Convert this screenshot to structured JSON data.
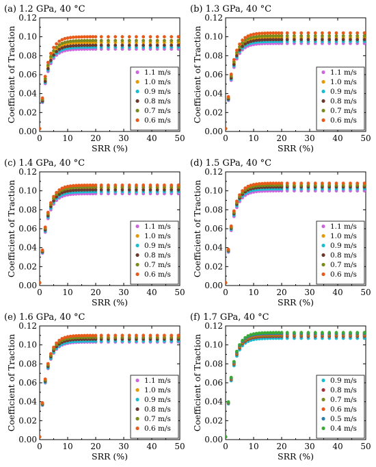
{
  "chart_data": [
    {
      "type": "scatter",
      "title": "(a) 1.2 GPa, 40 °C",
      "xlabel": "SRR (%)",
      "ylabel": "Coefficient of Traction",
      "xlim": [
        0,
        50
      ],
      "ylim": [
        0,
        0.12
      ],
      "xticks": [
        "0",
        "10",
        "20",
        "30",
        "40",
        "50"
      ],
      "yticks": [
        "0.00",
        "0.02",
        "0.04",
        "0.06",
        "0.08",
        "0.10",
        "0.12"
      ],
      "legend_position": "bottom-right",
      "series": [
        {
          "name": "1.1 m/s",
          "color": "#cc66dd",
          "plateau": 0.087,
          "curve": "saturating",
          "x_range": [
            0,
            50
          ]
        },
        {
          "name": "1.0 m/s",
          "color": "#e69a00",
          "plateau": 0.094,
          "curve": "saturating",
          "x_range": [
            0,
            50
          ]
        },
        {
          "name": "0.9 m/s",
          "color": "#1cbcd0",
          "plateau": 0.089,
          "curve": "saturating",
          "x_range": [
            0,
            50
          ]
        },
        {
          "name": "0.8 m/s",
          "color": "#6b3a2e",
          "plateau": 0.091,
          "curve": "saturating",
          "x_range": [
            0,
            50
          ]
        },
        {
          "name": "0.7 m/s",
          "color": "#7a8a1c",
          "plateau": 0.096,
          "curve": "saturating",
          "x_range": [
            0,
            50
          ]
        },
        {
          "name": "0.6 m/s",
          "color": "#e85a1a",
          "plateau": 0.1,
          "curve": "saturating",
          "x_range": [
            0,
            50
          ]
        }
      ]
    },
    {
      "type": "scatter",
      "title": "(b) 1.3 GPa, 40 °C",
      "xlabel": "SRR (%)",
      "ylabel": "Coefficient of Traction",
      "xlim": [
        0,
        50
      ],
      "ylim": [
        0,
        0.12
      ],
      "xticks": [
        "0",
        "10",
        "20",
        "30",
        "40",
        "50"
      ],
      "yticks": [
        "0.00",
        "0.02",
        "0.04",
        "0.06",
        "0.08",
        "0.10",
        "0.12"
      ],
      "legend_position": "bottom-right",
      "series": [
        {
          "name": "1.1 m/s",
          "color": "#cc66dd",
          "plateau": 0.093,
          "curve": "saturating",
          "x_range": [
            0,
            50
          ]
        },
        {
          "name": "1.0 m/s",
          "color": "#e69a00",
          "plateau": 0.099,
          "curve": "saturating",
          "x_range": [
            0,
            50
          ]
        },
        {
          "name": "0.9 m/s",
          "color": "#1cbcd0",
          "plateau": 0.095,
          "curve": "saturating",
          "x_range": [
            0,
            50
          ]
        },
        {
          "name": "0.8 m/s",
          "color": "#6b3a2e",
          "plateau": 0.097,
          "curve": "saturating",
          "x_range": [
            0,
            50
          ]
        },
        {
          "name": "0.7 m/s",
          "color": "#7a8a1c",
          "plateau": 0.101,
          "curve": "saturating",
          "x_range": [
            0,
            50
          ]
        },
        {
          "name": "0.6 m/s",
          "color": "#e85a1a",
          "plateau": 0.104,
          "curve": "saturating",
          "x_range": [
            0,
            50
          ]
        }
      ]
    },
    {
      "type": "scatter",
      "title": "(c) 1.4 GPa, 40 °C",
      "xlabel": "SRR (%)",
      "ylabel": "Coefficient of Traction",
      "xlim": [
        0,
        50
      ],
      "ylim": [
        0,
        0.12
      ],
      "xticks": [
        "0",
        "10",
        "20",
        "30",
        "40",
        "50"
      ],
      "yticks": [
        "0.00",
        "0.02",
        "0.04",
        "0.06",
        "0.08",
        "0.10",
        "0.12"
      ],
      "legend_position": "bottom-right",
      "series": [
        {
          "name": "1.1 m/s",
          "color": "#cc66dd",
          "plateau": 0.097,
          "curve": "saturating",
          "x_range": [
            0,
            50
          ]
        },
        {
          "name": "1.0 m/s",
          "color": "#e69a00",
          "plateau": 0.103,
          "curve": "saturating",
          "x_range": [
            0,
            50
          ]
        },
        {
          "name": "0.9 m/s",
          "color": "#1cbcd0",
          "plateau": 0.099,
          "curve": "saturating",
          "x_range": [
            0,
            50
          ]
        },
        {
          "name": "0.8 m/s",
          "color": "#6b3a2e",
          "plateau": 0.101,
          "curve": "saturating",
          "x_range": [
            0,
            50
          ]
        },
        {
          "name": "0.7 m/s",
          "color": "#7a8a1c",
          "plateau": 0.104,
          "curve": "saturating",
          "x_range": [
            0,
            50
          ]
        },
        {
          "name": "0.6 m/s",
          "color": "#e85a1a",
          "plateau": 0.106,
          "curve": "saturating",
          "x_range": [
            0,
            50
          ]
        }
      ]
    },
    {
      "type": "scatter",
      "title": "(d) 1.5 GPa, 40 °C",
      "xlabel": "SRR (%)",
      "ylabel": "Coefficient of Traction",
      "xlim": [
        0,
        50
      ],
      "ylim": [
        0,
        0.12
      ],
      "xticks": [
        "0",
        "10",
        "20",
        "30",
        "40",
        "50"
      ],
      "yticks": [
        "0.00",
        "0.02",
        "0.04",
        "0.06",
        "0.08",
        "0.10",
        "0.12"
      ],
      "legend_position": "bottom-right",
      "series": [
        {
          "name": "1.1 m/s",
          "color": "#cc66dd",
          "plateau": 0.1,
          "curve": "saturating",
          "x_range": [
            0,
            50
          ]
        },
        {
          "name": "1.0 m/s",
          "color": "#e69a00",
          "plateau": 0.105,
          "curve": "saturating",
          "x_range": [
            0,
            50
          ]
        },
        {
          "name": "0.9 m/s",
          "color": "#1cbcd0",
          "plateau": 0.102,
          "curve": "saturating",
          "x_range": [
            0,
            50
          ]
        },
        {
          "name": "0.8 m/s",
          "color": "#6b3a2e",
          "plateau": 0.104,
          "curve": "saturating",
          "x_range": [
            0,
            50
          ]
        },
        {
          "name": "0.7 m/s",
          "color": "#7a8a1c",
          "plateau": 0.106,
          "curve": "saturating",
          "x_range": [
            0,
            50
          ]
        },
        {
          "name": "0.6 m/s",
          "color": "#e85a1a",
          "plateau": 0.108,
          "curve": "saturating",
          "x_range": [
            0,
            50
          ]
        }
      ]
    },
    {
      "type": "scatter",
      "title": "(e) 1.6 GPa, 40 °C",
      "xlabel": "SRR (%)",
      "ylabel": "Coefficient of Traction",
      "xlim": [
        0,
        50
      ],
      "ylim": [
        0,
        0.12
      ],
      "xticks": [
        "0",
        "10",
        "20",
        "30",
        "40",
        "50"
      ],
      "yticks": [
        "0.00",
        "0.02",
        "0.04",
        "0.06",
        "0.08",
        "0.10",
        "0.12"
      ],
      "legend_position": "bottom-right",
      "series": [
        {
          "name": "1.1 m/s",
          "color": "#cc66dd",
          "plateau": 0.103,
          "curve": "saturating",
          "x_range": [
            0,
            50
          ]
        },
        {
          "name": "1.0 m/s",
          "color": "#e69a00",
          "plateau": 0.107,
          "curve": "saturating",
          "x_range": [
            0,
            50
          ]
        },
        {
          "name": "0.9 m/s",
          "color": "#1cbcd0",
          "plateau": 0.104,
          "curve": "saturating",
          "x_range": [
            0,
            50
          ]
        },
        {
          "name": "0.8 m/s",
          "color": "#6b3a2e",
          "plateau": 0.106,
          "curve": "saturating",
          "x_range": [
            0,
            50
          ]
        },
        {
          "name": "0.7 m/s",
          "color": "#7a8a1c",
          "plateau": 0.108,
          "curve": "saturating",
          "x_range": [
            0,
            50
          ]
        },
        {
          "name": "0.6 m/s",
          "color": "#e85a1a",
          "plateau": 0.11,
          "curve": "saturating",
          "x_range": [
            0,
            50
          ]
        }
      ]
    },
    {
      "type": "scatter",
      "title": "(f) 1.7 GPa, 40 °C",
      "xlabel": "SRR (%)",
      "ylabel": "Coefficient of Traction",
      "xlim": [
        0,
        50
      ],
      "ylim": [
        0,
        0.12
      ],
      "xticks": [
        "0",
        "10",
        "20",
        "30",
        "40",
        "50"
      ],
      "yticks": [
        "0.00",
        "0.02",
        "0.04",
        "0.06",
        "0.08",
        "0.10",
        "0.12"
      ],
      "legend_position": "bottom-right",
      "series": [
        {
          "name": "0.9 m/s",
          "color": "#1cbcd0",
          "plateau": 0.107,
          "curve": "saturating",
          "x_range": [
            0,
            50
          ]
        },
        {
          "name": "0.8 m/s",
          "color": "#a5323a",
          "plateau": 0.109,
          "curve": "saturating",
          "x_range": [
            0,
            50
          ]
        },
        {
          "name": "0.7 m/s",
          "color": "#7a8a1c",
          "plateau": 0.11,
          "curve": "saturating",
          "x_range": [
            0,
            50
          ]
        },
        {
          "name": "0.6 m/s",
          "color": "#e85a1a",
          "plateau": 0.111,
          "curve": "saturating",
          "x_range": [
            0,
            50
          ]
        },
        {
          "name": "0.5 m/s",
          "color": "#2a7fa8",
          "plateau": 0.112,
          "curve": "saturating",
          "x_range": [
            0,
            50
          ]
        },
        {
          "name": "0.4 m/s",
          "color": "#3aaa35",
          "plateau": 0.113,
          "curve": "saturating",
          "x_range": [
            0,
            50
          ]
        }
      ]
    }
  ]
}
